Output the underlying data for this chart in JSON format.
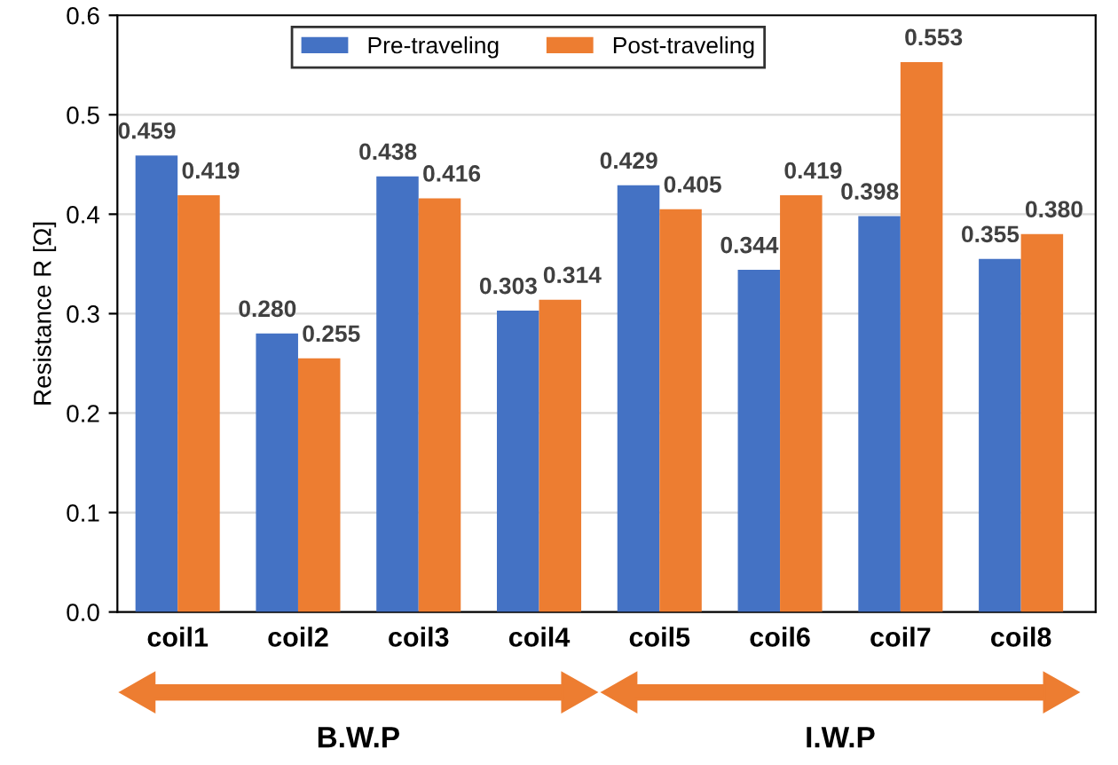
{
  "chart_data": {
    "type": "bar",
    "ylabel": "Resistance R [Ω]",
    "categories": [
      "coil1",
      "coil2",
      "coil3",
      "coil4",
      "coil5",
      "coil6",
      "coil7",
      "coil8"
    ],
    "series": [
      {
        "name": "Pre-traveling",
        "color": "#4472c4",
        "values": [
          0.459,
          0.28,
          0.438,
          0.303,
          0.429,
          0.344,
          0.398,
          0.355
        ],
        "value_labels": [
          "0.459",
          "0.280",
          "0.438",
          "0.303",
          "0.429",
          "0.344",
          "0.398",
          "0.355"
        ]
      },
      {
        "name": "Post-traveling",
        "color": "#ed7d31",
        "values": [
          0.419,
          0.255,
          0.416,
          0.314,
          0.405,
          0.419,
          0.553,
          0.38
        ],
        "value_labels": [
          "0.419",
          "0.255",
          "0.416",
          "0.314",
          "0.405",
          "0.419",
          "0.553",
          "0.380"
        ]
      }
    ],
    "ylim": [
      0,
      0.6
    ],
    "yticks": [
      {
        "value": 0,
        "label": "0.0"
      },
      {
        "value": 0.1,
        "label": "0.1"
      },
      {
        "value": 0.2,
        "label": "0.2"
      },
      {
        "value": 0.3,
        "label": "0.3"
      },
      {
        "value": 0.4,
        "label": "0.4"
      },
      {
        "value": 0.5,
        "label": "0.5"
      },
      {
        "value": 0.6,
        "label": "0.6"
      }
    ],
    "grid": "y",
    "legend": "top",
    "annotations": [
      "B.W.P",
      "I.W.P"
    ]
  }
}
